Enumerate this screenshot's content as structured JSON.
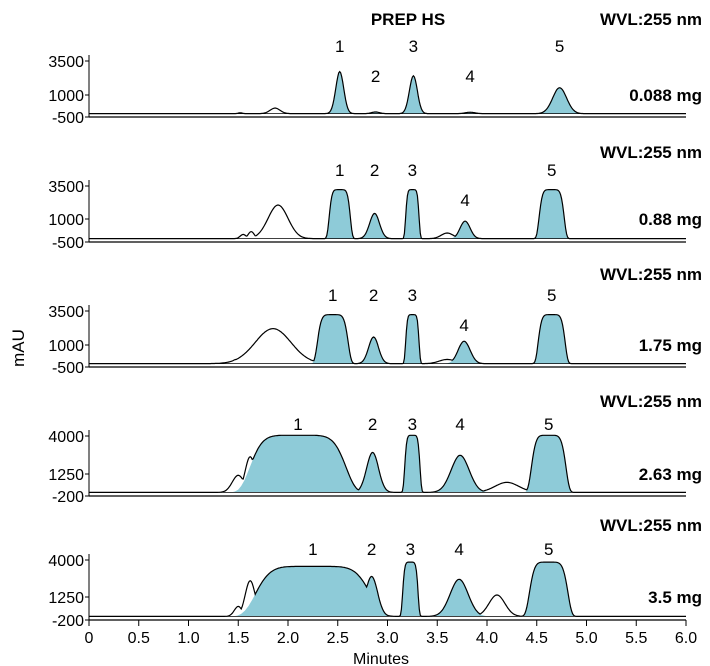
{
  "chart_data": {
    "type": "area",
    "title": "PREP HS",
    "xlabel": "Minutes",
    "ylabel": "mAU",
    "xlim": [
      0,
      6.0
    ],
    "x_ticks": [
      "0",
      "0.5",
      "1.0",
      "1.5",
      "2.0",
      "2.5",
      "3.0",
      "3.5",
      "4.0",
      "4.5",
      "5.0",
      "5.5",
      "6.0"
    ],
    "fill_color": "#8ecbd8",
    "line_color": "#000000",
    "panels": [
      {
        "wvl": "WVL:255 nm",
        "mass": "0.088 mg",
        "yticks": [
          "3500",
          "1000",
          "-500"
        ],
        "ylim": [
          -500,
          4200
        ],
        "peaks": [
          {
            "label": "1",
            "t": 2.52,
            "w": 0.04,
            "h": 3000
          },
          {
            "label": "2",
            "t": 2.88,
            "w": 0.04,
            "h": 120
          },
          {
            "label": "3",
            "t": 3.26,
            "w": 0.04,
            "h": 2700
          },
          {
            "label": "4",
            "t": 3.83,
            "w": 0.05,
            "h": 100
          },
          {
            "label": "5",
            "t": 4.73,
            "w": 0.07,
            "h": 1850
          }
        ],
        "unfilled": [
          {
            "t": 1.52,
            "w": 0.02,
            "h": 60
          },
          {
            "t": 1.87,
            "w": 0.05,
            "h": 400
          }
        ]
      },
      {
        "wvl": "WVL:255 nm",
        "mass": "0.88 mg",
        "yticks": [
          "3500",
          "1000",
          "-500"
        ],
        "ylim": [
          -500,
          4500
        ],
        "peaks": [
          {
            "label": "1",
            "t": 2.52,
            "w": 0.11,
            "h": 3500,
            "flat": true
          },
          {
            "label": "2",
            "t": 2.87,
            "w": 0.05,
            "h": 1800
          },
          {
            "label": "3",
            "t": 3.25,
            "w": 0.07,
            "h": 3500,
            "flat": true
          },
          {
            "label": "4",
            "t": 3.78,
            "w": 0.05,
            "h": 1250
          },
          {
            "label": "5",
            "t": 4.65,
            "w": 0.13,
            "h": 3500,
            "flat": true
          }
        ],
        "unfilled": [
          {
            "t": 1.55,
            "w": 0.03,
            "h": 300
          },
          {
            "t": 1.63,
            "w": 0.03,
            "h": 500
          },
          {
            "t": 1.9,
            "w": 0.1,
            "h": 2400
          },
          {
            "t": 3.6,
            "w": 0.06,
            "h": 400
          }
        ]
      },
      {
        "wvl": "WVL:255 nm",
        "mass": "1.75 mg",
        "yticks": [
          "3500",
          "1000",
          "-500"
        ],
        "ylim": [
          -500,
          4500
        ],
        "peaks": [
          {
            "label": "1",
            "t": 2.45,
            "w": 0.16,
            "h": 3500,
            "flat": true
          },
          {
            "label": "2",
            "t": 2.86,
            "w": 0.05,
            "h": 1900
          },
          {
            "label": "3",
            "t": 3.25,
            "w": 0.07,
            "h": 3500,
            "flat": true
          },
          {
            "label": "4",
            "t": 3.77,
            "w": 0.06,
            "h": 1600
          },
          {
            "label": "5",
            "t": 4.65,
            "w": 0.14,
            "h": 3500,
            "flat": true
          }
        ],
        "unfilled": [],
        "fronts": [
          {
            "t": 1.85,
            "w": 0.18,
            "h": 2500
          },
          {
            "t": 1.62,
            "w": 0.08,
            "h": 800
          },
          {
            "t": 1.48,
            "w": 0.04,
            "h": 300
          },
          {
            "t": 3.6,
            "w": 0.08,
            "h": 300
          }
        ]
      },
      {
        "wvl": "WVL:255 nm",
        "mass": "2.63 mg",
        "yticks": [
          "4000",
          "1250",
          "-200"
        ],
        "ylim": [
          -200,
          4800
        ],
        "peaks": [
          {
            "label": "1",
            "t": 2.1,
            "w": 0.5,
            "h": 4000,
            "flat": true
          },
          {
            "label": "2",
            "t": 2.85,
            "w": 0.06,
            "h": 2800
          },
          {
            "label": "3",
            "t": 3.25,
            "w": 0.08,
            "h": 4000,
            "flat": true
          },
          {
            "label": "4",
            "t": 3.73,
            "w": 0.09,
            "h": 2600
          },
          {
            "label": "5",
            "t": 4.62,
            "w": 0.18,
            "h": 4000,
            "flat": true
          }
        ],
        "unfilled": [],
        "fronts": [
          {
            "t": 1.62,
            "w": 0.05,
            "h": 2500
          },
          {
            "t": 1.5,
            "w": 0.06,
            "h": 1200
          },
          {
            "t": 4.2,
            "w": 0.12,
            "h": 700
          }
        ]
      },
      {
        "wvl": "WVL:255 nm",
        "mass": "3.5 mg",
        "yticks": [
          "4000",
          "1250",
          "-200"
        ],
        "ylim": [
          -200,
          4800
        ],
        "peaks": [
          {
            "label": "1",
            "t": 2.25,
            "w": 0.6,
            "h": 3500,
            "flat": true
          },
          {
            "label": "2",
            "t": 2.84,
            "w": 0.06,
            "h": 2800
          },
          {
            "label": "3",
            "t": 3.23,
            "w": 0.08,
            "h": 3800,
            "flat": true
          },
          {
            "label": "4",
            "t": 3.72,
            "w": 0.09,
            "h": 2600
          },
          {
            "label": "5",
            "t": 4.62,
            "w": 0.2,
            "h": 3800,
            "flat": true
          }
        ],
        "unfilled": [
          {
            "t": 1.5,
            "w": 0.04,
            "h": 700
          },
          {
            "t": 4.1,
            "w": 0.08,
            "h": 1500
          }
        ],
        "fronts": [
          {
            "t": 1.62,
            "w": 0.05,
            "h": 2500
          }
        ]
      }
    ]
  }
}
